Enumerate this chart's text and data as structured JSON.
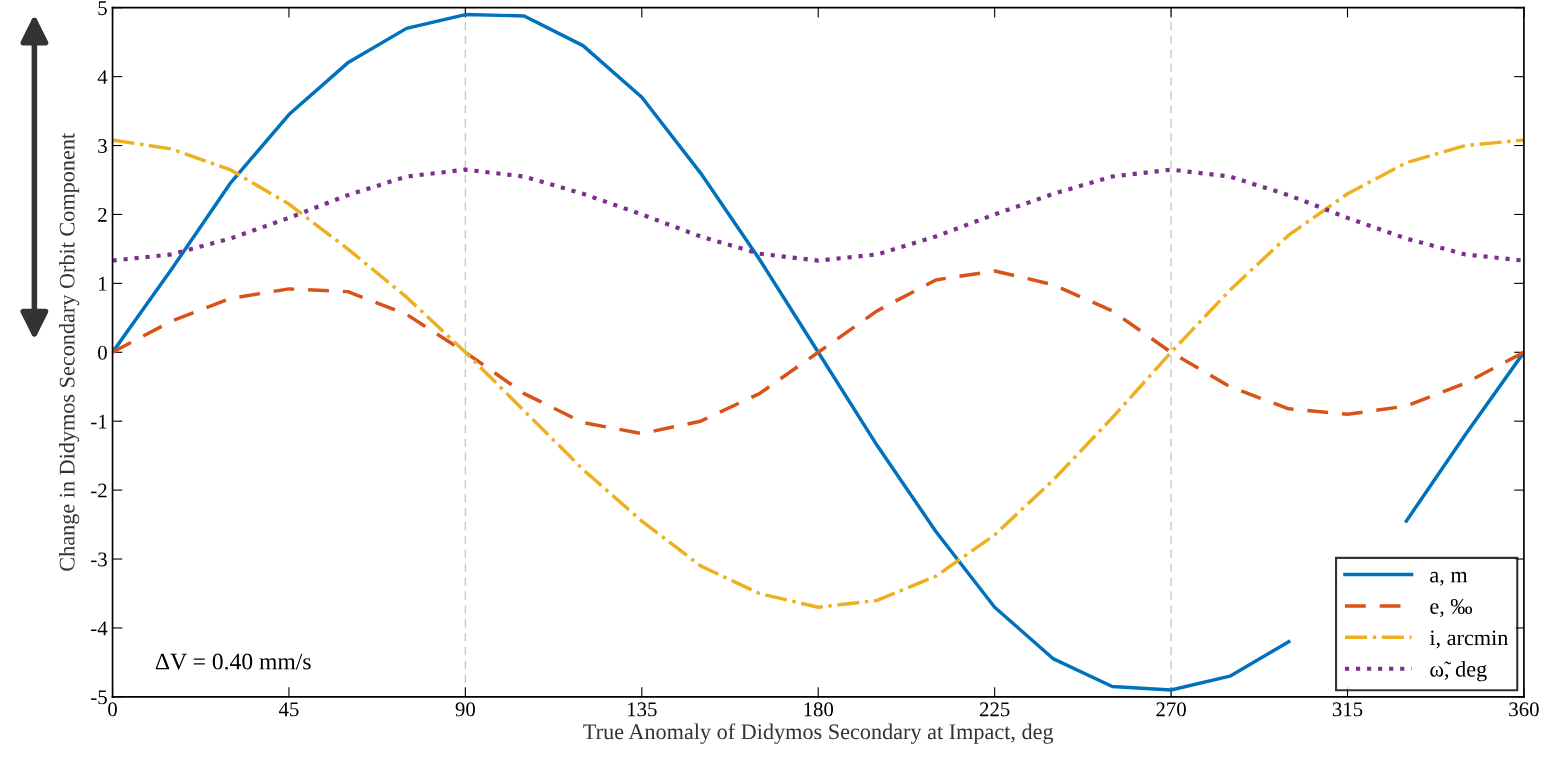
{
  "chart_data": {
    "type": "line",
    "xlabel": "True Anomaly of Didymos Secondary at Impact, deg",
    "ylabel": "Change in Didymos Secondary Orbit Component",
    "xlim": [
      0,
      360
    ],
    "ylim": [
      -5,
      5
    ],
    "xticks": [
      0,
      45,
      90,
      135,
      180,
      225,
      270,
      315,
      360
    ],
    "yticks": [
      -5,
      -4,
      -3,
      -2,
      -1,
      0,
      1,
      2,
      3,
      4,
      5
    ],
    "grid": false,
    "legend": "bottom right",
    "annotations": [
      "ΔV = 0.40 mm/s"
    ],
    "ref_lines": [
      {
        "axis": "x",
        "value": 90,
        "color": "#c8c8c8",
        "line_style": "dashed"
      },
      {
        "axis": "x",
        "value": 270,
        "color": "#c8c8c8",
        "line_style": "dashed"
      }
    ],
    "x": [
      0,
      15,
      30,
      45,
      60,
      75,
      90,
      105,
      120,
      135,
      150,
      165,
      180,
      195,
      210,
      225,
      240,
      255,
      270,
      285,
      300,
      315,
      330,
      345,
      360
    ],
    "series": [
      {
        "name": "a, m",
        "color": "#0072bd",
        "line_style": "solid",
        "values": [
          0,
          1.2,
          2.45,
          3.45,
          4.2,
          4.7,
          4.9,
          4.88,
          4.45,
          3.7,
          2.6,
          1.35,
          0,
          -1.35,
          -2.6,
          -3.7,
          -4.45,
          -4.85,
          -4.9,
          -4.7,
          -4.2,
          null,
          -2.45,
          -1.2,
          0
        ]
      },
      {
        "name": "e, ‰",
        "color": "#d95319",
        "line_style": "dashed",
        "values": [
          0,
          0.45,
          0.78,
          0.92,
          0.88,
          0.55,
          0,
          -0.6,
          -1.02,
          -1.18,
          -1.0,
          -0.6,
          0,
          0.6,
          1.05,
          1.18,
          0.98,
          0.6,
          0,
          -0.5,
          -0.82,
          -0.9,
          -0.78,
          -0.45,
          0
        ]
      },
      {
        "name": "i, arcmin",
        "color": "#edb120",
        "line_style": "dashdot",
        "values": [
          3.08,
          2.95,
          2.65,
          2.15,
          1.5,
          0.8,
          0,
          -0.85,
          -1.7,
          -2.45,
          -3.1,
          -3.5,
          -3.7,
          -3.6,
          -3.25,
          -2.65,
          -1.85,
          -0.95,
          0,
          0.9,
          1.7,
          2.3,
          2.75,
          3.0,
          3.08
        ]
      },
      {
        "name": "ω̃, deg",
        "color": "#7e2f8e",
        "line_style": "dotted",
        "values": [
          1.33,
          1.42,
          1.65,
          1.95,
          2.28,
          2.55,
          2.65,
          2.55,
          2.3,
          2.0,
          1.68,
          1.43,
          1.33,
          1.42,
          1.68,
          2.0,
          2.3,
          2.55,
          2.65,
          2.55,
          2.28,
          1.95,
          1.65,
          1.42,
          1.33
        ]
      }
    ]
  }
}
